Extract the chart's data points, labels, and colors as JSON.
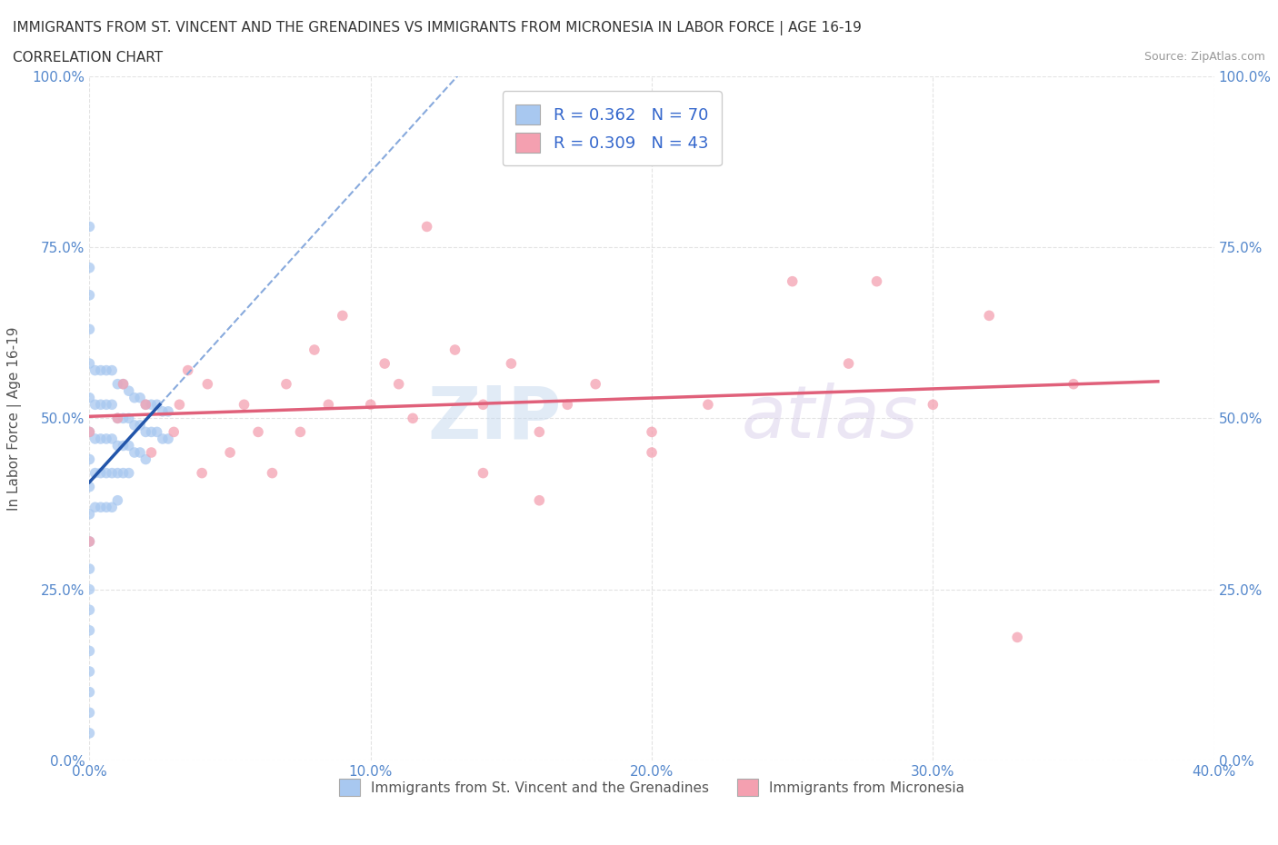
{
  "title_line1": "IMMIGRANTS FROM ST. VINCENT AND THE GRENADINES VS IMMIGRANTS FROM MICRONESIA IN LABOR FORCE | AGE 16-19",
  "title_line2": "CORRELATION CHART",
  "source": "Source: ZipAtlas.com",
  "ylabel": "In Labor Force | Age 16-19",
  "xlim": [
    0.0,
    0.4
  ],
  "ylim": [
    0.0,
    1.0
  ],
  "xticks": [
    0.0,
    0.1,
    0.2,
    0.3,
    0.4
  ],
  "xticklabels": [
    "0.0%",
    "10.0%",
    "20.0%",
    "30.0%",
    "40.0%"
  ],
  "yticks": [
    0.0,
    0.25,
    0.5,
    0.75,
    1.0
  ],
  "yticklabels": [
    "0.0%",
    "25.0%",
    "50.0%",
    "75.0%",
    "100.0%"
  ],
  "blue_color": "#a8c8f0",
  "pink_color": "#f4a0b0",
  "blue_trend_color": "#2255aa",
  "blue_dash_color": "#88aadd",
  "pink_trend_color": "#e0607a",
  "R_blue": 0.362,
  "N_blue": 70,
  "R_pink": 0.309,
  "N_pink": 43,
  "watermark_zip": "ZIP",
  "watermark_atlas": "atlas",
  "legend_label_blue": "Immigrants from St. Vincent and the Grenadines",
  "legend_label_pink": "Immigrants from Micronesia",
  "background_color": "#ffffff",
  "grid_color": "#dddddd",
  "blue_scatter_x": [
    0.0,
    0.0,
    0.0,
    0.0,
    0.0,
    0.0,
    0.0,
    0.0,
    0.0,
    0.0,
    0.0,
    0.0,
    0.0,
    0.0,
    0.0,
    0.0,
    0.0,
    0.0,
    0.0,
    0.0,
    0.002,
    0.002,
    0.002,
    0.002,
    0.002,
    0.004,
    0.004,
    0.004,
    0.004,
    0.004,
    0.006,
    0.006,
    0.006,
    0.006,
    0.006,
    0.008,
    0.008,
    0.008,
    0.008,
    0.008,
    0.01,
    0.01,
    0.01,
    0.01,
    0.01,
    0.012,
    0.012,
    0.012,
    0.012,
    0.014,
    0.014,
    0.014,
    0.014,
    0.016,
    0.016,
    0.016,
    0.018,
    0.018,
    0.018,
    0.02,
    0.02,
    0.02,
    0.022,
    0.022,
    0.024,
    0.024,
    0.026,
    0.026,
    0.028,
    0.028
  ],
  "blue_scatter_y": [
    0.78,
    0.72,
    0.68,
    0.63,
    0.58,
    0.53,
    0.48,
    0.44,
    0.4,
    0.36,
    0.32,
    0.28,
    0.25,
    0.22,
    0.19,
    0.16,
    0.13,
    0.1,
    0.07,
    0.04,
    0.57,
    0.52,
    0.47,
    0.42,
    0.37,
    0.57,
    0.52,
    0.47,
    0.42,
    0.37,
    0.57,
    0.52,
    0.47,
    0.42,
    0.37,
    0.57,
    0.52,
    0.47,
    0.42,
    0.37,
    0.55,
    0.5,
    0.46,
    0.42,
    0.38,
    0.55,
    0.5,
    0.46,
    0.42,
    0.54,
    0.5,
    0.46,
    0.42,
    0.53,
    0.49,
    0.45,
    0.53,
    0.49,
    0.45,
    0.52,
    0.48,
    0.44,
    0.52,
    0.48,
    0.52,
    0.48,
    0.51,
    0.47,
    0.51,
    0.47
  ],
  "pink_scatter_x": [
    0.0,
    0.0,
    0.01,
    0.012,
    0.02,
    0.022,
    0.03,
    0.032,
    0.035,
    0.04,
    0.042,
    0.05,
    0.055,
    0.06,
    0.065,
    0.07,
    0.075,
    0.08,
    0.085,
    0.09,
    0.1,
    0.105,
    0.11,
    0.115,
    0.12,
    0.13,
    0.14,
    0.15,
    0.16,
    0.17,
    0.18,
    0.2,
    0.22,
    0.25,
    0.27,
    0.3,
    0.32,
    0.35,
    0.14,
    0.16,
    0.2,
    0.28,
    0.33
  ],
  "pink_scatter_y": [
    0.48,
    0.32,
    0.5,
    0.55,
    0.52,
    0.45,
    0.48,
    0.52,
    0.57,
    0.42,
    0.55,
    0.45,
    0.52,
    0.48,
    0.42,
    0.55,
    0.48,
    0.6,
    0.52,
    0.65,
    0.52,
    0.58,
    0.55,
    0.5,
    0.78,
    0.6,
    0.52,
    0.58,
    0.48,
    0.52,
    0.55,
    0.48,
    0.52,
    0.7,
    0.58,
    0.52,
    0.65,
    0.55,
    0.42,
    0.38,
    0.45,
    0.7,
    0.18
  ]
}
